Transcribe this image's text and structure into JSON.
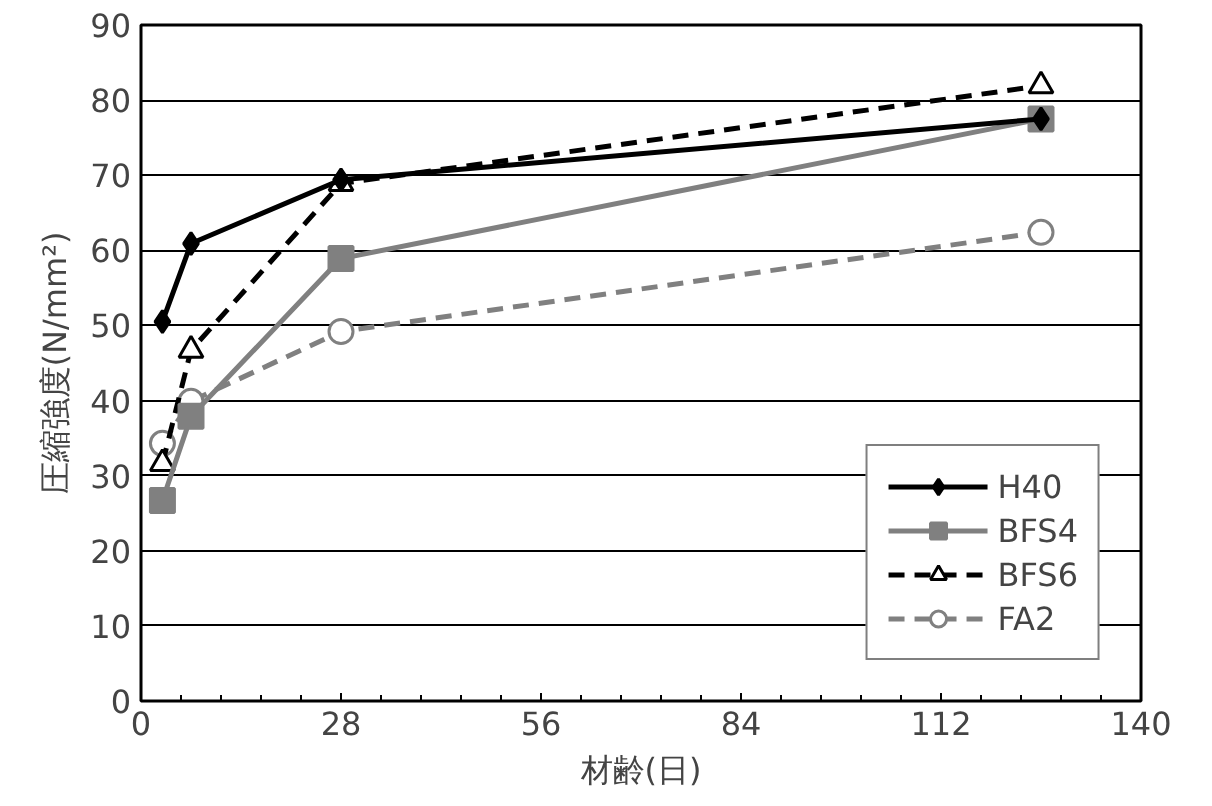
{
  "chart_data": {
    "type": "line",
    "xlabel": "材齢(日)",
    "ylabel": "圧縮強度(N/mm²)",
    "x": [
      3,
      7,
      28,
      126
    ],
    "series": [
      {
        "name": "H40",
        "color": "#000000",
        "values": [
          50.5,
          60.9,
          69.4,
          77.5
        ],
        "marker": "diamond",
        "line_style": "solid"
      },
      {
        "name": "BFS4",
        "color": "#808080",
        "values": [
          26.7,
          37.9,
          58.9,
          77.5
        ],
        "marker": "square",
        "line_style": "solid"
      },
      {
        "name": "BFS6",
        "color": "#000000",
        "values": [
          31.6,
          46.7,
          68.9,
          81.9
        ],
        "marker": "triangle",
        "line_style": "dashed"
      },
      {
        "name": "FA2",
        "color": "#808080",
        "values": [
          34.3,
          39.9,
          49.2,
          62.4
        ],
        "marker": "circle",
        "line_style": "dashed"
      }
    ],
    "xlim": [
      0,
      140
    ],
    "xticks": [
      0,
      28,
      56,
      84,
      112,
      140
    ],
    "ylim": [
      0,
      90
    ],
    "yticks": [
      0,
      10,
      20,
      30,
      40,
      50,
      60,
      70,
      80,
      90
    ],
    "grid": "y",
    "legend": "bottom right"
  }
}
